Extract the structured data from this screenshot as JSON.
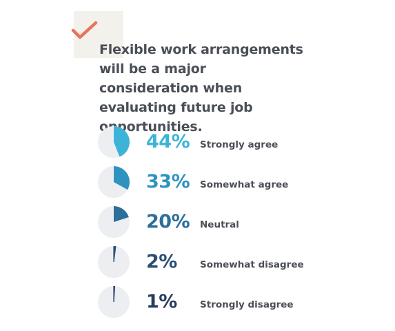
{
  "headline": "Flexible work arrangements will be a major consideration when evaluating future job opportunities.",
  "icon": "checkmark-icon",
  "colors": {
    "check": "#e8735a",
    "check_bg": "#f3f1ec",
    "pie_bg": "#eceef2",
    "text": "#4a4e57"
  },
  "chart_data": {
    "type": "pie",
    "title": "Flexible work arrangements will be a major consideration when evaluating future job opportunities.",
    "categories": [
      "Strongly agree",
      "Somewhat agree",
      "Neutral",
      "Somewhat disagree",
      "Strongly disagree"
    ],
    "values": [
      44,
      33,
      20,
      2,
      1
    ],
    "unit": "%",
    "labels": [
      "44%",
      "33%",
      "20%",
      "2%",
      "1%"
    ],
    "colors": [
      "#3eb3d8",
      "#2f93bf",
      "#2b6f9a",
      "#2a4f72",
      "#283b5e"
    ]
  }
}
